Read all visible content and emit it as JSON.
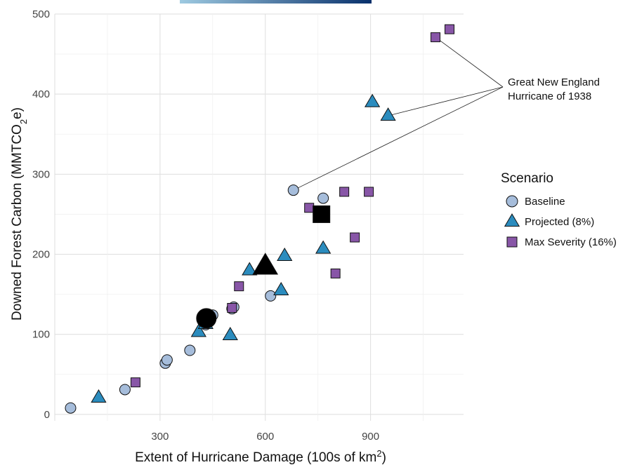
{
  "chart_data": {
    "type": "scatter",
    "xlabel": "Extent of Hurricane Damage (100s of km",
    "xlabel_sup": "2",
    "xlabel_end": ")",
    "ylabel": "Downed Forest Carbon (MMTCO",
    "ylabel_sub": "2",
    "ylabel_end": "e)",
    "xlim": [
      0,
      1165
    ],
    "ylim": [
      -8,
      500
    ],
    "x_ticks": [
      300,
      600,
      900
    ],
    "x_tick_labels": [
      "300",
      "600",
      "900"
    ],
    "y_ticks": [
      0,
      100,
      200,
      300,
      400,
      500
    ],
    "y_tick_labels": [
      "0",
      "100",
      "200",
      "300",
      "400",
      "500"
    ],
    "grid": true,
    "legend": {
      "title": "Scenario",
      "position": "right"
    },
    "annotation": {
      "lines": [
        "Great New England",
        "Hurricane of 1938"
      ]
    },
    "colors": {
      "baseline": "#a6bddb",
      "projected": "#2b8cbe",
      "max_severity": "#8856a7",
      "mean": "#000000",
      "gradient_start": "#9ecae1",
      "gradient_end": "#08306b"
    },
    "series": [
      {
        "name": "Baseline",
        "marker": "circle",
        "color": "#a6bddb",
        "points": [
          {
            "x": 45,
            "y": 8
          },
          {
            "x": 200,
            "y": 31
          },
          {
            "x": 315,
            "y": 64
          },
          {
            "x": 320,
            "y": 68
          },
          {
            "x": 385,
            "y": 80
          },
          {
            "x": 450,
            "y": 124
          },
          {
            "x": 505,
            "y": 132
          },
          {
            "x": 510,
            "y": 134
          },
          {
            "x": 615,
            "y": 148
          },
          {
            "x": 680,
            "y": 280
          },
          {
            "x": 765,
            "y": 270
          },
          {
            "x": 430,
            "y": 112
          }
        ],
        "mean": {
          "x": 432,
          "y": 120
        }
      },
      {
        "name": "Projected (8%)",
        "marker": "triangle",
        "color": "#2b8cbe",
        "points": [
          {
            "x": 125,
            "y": 21
          },
          {
            "x": 410,
            "y": 103
          },
          {
            "x": 430,
            "y": 113
          },
          {
            "x": 500,
            "y": 99
          },
          {
            "x": 555,
            "y": 180
          },
          {
            "x": 645,
            "y": 155
          },
          {
            "x": 655,
            "y": 198
          },
          {
            "x": 765,
            "y": 207
          },
          {
            "x": 905,
            "y": 390
          },
          {
            "x": 950,
            "y": 373
          }
        ],
        "mean": {
          "x": 600,
          "y": 185
        }
      },
      {
        "name": "Max Severity (16%)",
        "marker": "square",
        "color": "#8856a7",
        "points": [
          {
            "x": 230,
            "y": 40
          },
          {
            "x": 505,
            "y": 133
          },
          {
            "x": 525,
            "y": 160
          },
          {
            "x": 725,
            "y": 258
          },
          {
            "x": 825,
            "y": 278
          },
          {
            "x": 895,
            "y": 278
          },
          {
            "x": 800,
            "y": 176
          },
          {
            "x": 855,
            "y": 221
          },
          {
            "x": 1085,
            "y": 471
          },
          {
            "x": 1125,
            "y": 481
          }
        ],
        "mean": {
          "x": 760,
          "y": 250
        }
      }
    ],
    "callout_targets": [
      {
        "x": 1085,
        "y": 471
      },
      {
        "x": 950,
        "y": 373
      },
      {
        "x": 680,
        "y": 280
      }
    ]
  }
}
